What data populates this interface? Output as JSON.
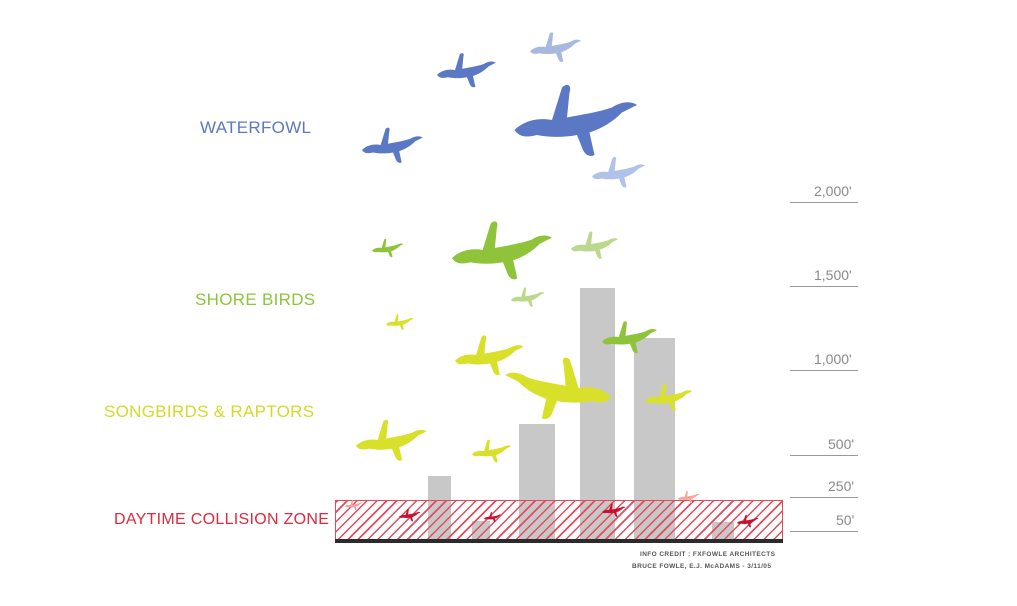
{
  "categories": [
    {
      "id": "waterfowl",
      "label": "WATERFOWL",
      "color": "#5a78c4"
    },
    {
      "id": "shore",
      "label": "SHORE BIRDS",
      "color": "#8fc43a"
    },
    {
      "id": "songbirds",
      "label": "SONGBIRDS & RAPTORS",
      "color": "#d9e02a"
    },
    {
      "id": "collision",
      "label": "DAYTIME COLLISION ZONE",
      "color": "#e0293d"
    }
  ],
  "altitudes": [
    {
      "label": "2,000'"
    },
    {
      "label": "1,500'"
    },
    {
      "label": "1,000'"
    },
    {
      "label": "500'"
    },
    {
      "label": "250'"
    },
    {
      "label": "50'"
    }
  ],
  "credit": {
    "line1": "INFO CREDIT : FXFOWLE ARCHITECTS",
    "line2": "BRUCE FOWLE, E.J. McADAMS - 3/11/05"
  },
  "colors": {
    "building": "#c8c8c8",
    "zone_hatch": "#e54a5c",
    "ground": "#2b2b2b",
    "altitude_text": "#8a8a8a"
  },
  "icons": {
    "bird": "flying-bird-icon"
  }
}
